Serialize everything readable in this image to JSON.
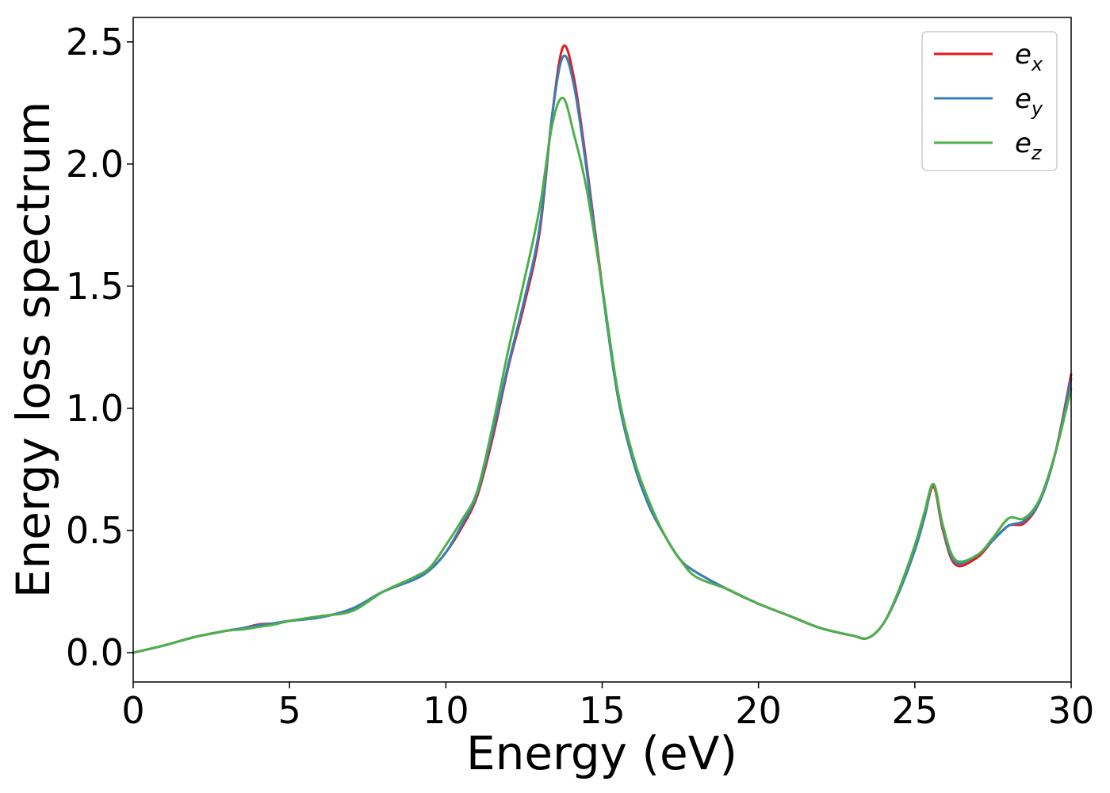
{
  "chart_data": {
    "type": "line",
    "xlabel": "Energy (eV)",
    "ylabel": "Energy loss spectrum",
    "xlim": [
      0,
      30
    ],
    "ylim": [
      -0.12,
      2.6
    ],
    "xticks": [
      "0",
      "5",
      "10",
      "15",
      "20",
      "25",
      "30"
    ],
    "yticks": [
      "0.0",
      "0.5",
      "1.0",
      "1.5",
      "2.0",
      "2.5"
    ],
    "grid": false,
    "legend_position": "top-right",
    "series": [
      {
        "name": "e_x",
        "label_base": "e",
        "label_sub": "x",
        "color": "#e41a1c",
        "x": [
          0,
          1,
          2,
          3,
          3.5,
          4,
          4.5,
          5,
          6,
          7,
          8,
          9,
          9.5,
          10,
          10.5,
          11,
          11.5,
          12,
          12.5,
          13,
          13.4,
          13.75,
          14.1,
          14.5,
          15,
          15.5,
          16,
          16.5,
          17,
          17.5,
          18,
          19,
          20,
          21,
          22,
          23,
          23.5,
          24,
          24.5,
          25,
          25.3,
          25.6,
          25.9,
          26.3,
          27,
          27.5,
          28,
          28.5,
          29,
          29.5,
          30
        ],
        "y": [
          0.0,
          0.03,
          0.065,
          0.09,
          0.1,
          0.115,
          0.12,
          0.13,
          0.145,
          0.18,
          0.25,
          0.3,
          0.34,
          0.41,
          0.51,
          0.64,
          0.88,
          1.17,
          1.42,
          1.72,
          2.2,
          2.48,
          2.35,
          2.0,
          1.5,
          1.05,
          0.78,
          0.6,
          0.48,
          0.38,
          0.33,
          0.26,
          0.2,
          0.15,
          0.1,
          0.07,
          0.06,
          0.12,
          0.25,
          0.42,
          0.55,
          0.68,
          0.5,
          0.36,
          0.39,
          0.46,
          0.52,
          0.53,
          0.62,
          0.82,
          1.14
        ]
      },
      {
        "name": "e_y",
        "label_base": "e",
        "label_sub": "y",
        "color": "#377eb8",
        "x": [
          0,
          1,
          2,
          3,
          3.5,
          4,
          4.5,
          5,
          6,
          7,
          8,
          9,
          9.5,
          10,
          10.5,
          11,
          11.5,
          12,
          12.5,
          13,
          13.4,
          13.75,
          14.1,
          14.5,
          15,
          15.5,
          16,
          16.5,
          17,
          17.5,
          18,
          19,
          20,
          21,
          22,
          23,
          23.5,
          24,
          24.5,
          25,
          25.3,
          25.6,
          25.9,
          26.3,
          27,
          27.5,
          28,
          28.5,
          29,
          29.5,
          30
        ],
        "y": [
          0.0,
          0.03,
          0.065,
          0.09,
          0.1,
          0.112,
          0.12,
          0.13,
          0.145,
          0.18,
          0.25,
          0.3,
          0.34,
          0.41,
          0.52,
          0.65,
          0.9,
          1.18,
          1.44,
          1.74,
          2.2,
          2.44,
          2.32,
          1.98,
          1.49,
          1.05,
          0.78,
          0.6,
          0.48,
          0.38,
          0.33,
          0.26,
          0.2,
          0.15,
          0.1,
          0.07,
          0.06,
          0.12,
          0.25,
          0.42,
          0.55,
          0.69,
          0.51,
          0.37,
          0.4,
          0.46,
          0.52,
          0.54,
          0.62,
          0.82,
          1.12
        ]
      },
      {
        "name": "e_z",
        "label_base": "e",
        "label_sub": "z",
        "color": "#4daf4a",
        "x": [
          0,
          1,
          2,
          3,
          3.5,
          4,
          4.5,
          5,
          6,
          7,
          8,
          9,
          9.5,
          10,
          10.5,
          11,
          11.5,
          12,
          12.5,
          13,
          13.4,
          13.75,
          14.1,
          14.5,
          15,
          15.5,
          16,
          16.5,
          17,
          17.5,
          18,
          19,
          20,
          21,
          22,
          23,
          23.5,
          24,
          24.5,
          25,
          25.3,
          25.6,
          25.9,
          26.3,
          27,
          27.5,
          28,
          28.5,
          29,
          29.5,
          30
        ],
        "y": [
          0.0,
          0.03,
          0.065,
          0.09,
          0.095,
          0.105,
          0.115,
          0.13,
          0.15,
          0.17,
          0.25,
          0.31,
          0.35,
          0.44,
          0.54,
          0.66,
          0.93,
          1.24,
          1.52,
          1.82,
          2.16,
          2.27,
          2.12,
          1.9,
          1.5,
          1.07,
          0.8,
          0.62,
          0.48,
          0.38,
          0.31,
          0.26,
          0.2,
          0.15,
          0.1,
          0.07,
          0.06,
          0.12,
          0.26,
          0.44,
          0.57,
          0.69,
          0.52,
          0.38,
          0.4,
          0.47,
          0.55,
          0.55,
          0.63,
          0.82,
          1.08
        ]
      }
    ]
  }
}
